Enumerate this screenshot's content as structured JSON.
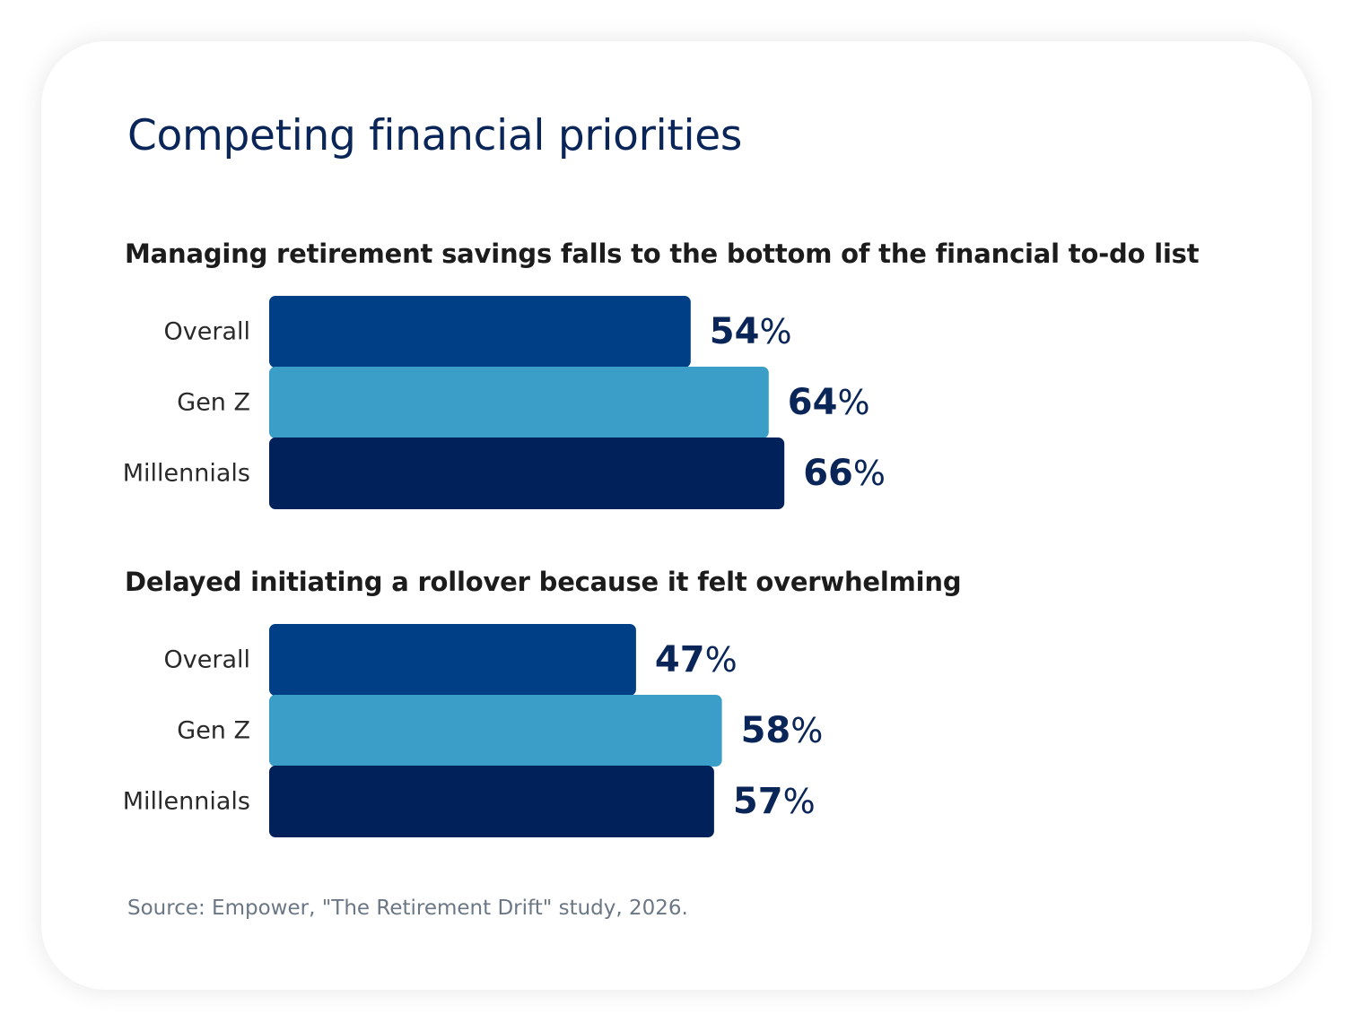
{
  "title": "Competing financial priorities",
  "source": "Source: Empower, \"The Retirement Drift\" study, 2026.",
  "colors": {
    "overall": "#003f85",
    "gen_z": "#3b9ec8",
    "millennials": "#00215a",
    "text_dark": "#0a2558"
  },
  "chart_data": [
    {
      "type": "bar",
      "orientation": "horizontal",
      "title": "Managing retirement savings falls to the bottom of the financial to-do list",
      "categories": [
        "Overall",
        "Gen Z",
        "Millennials"
      ],
      "values": [
        54,
        64,
        66
      ],
      "unit": "%",
      "xlim": [
        0,
        100
      ],
      "grid": false,
      "legend": "none"
    },
    {
      "type": "bar",
      "orientation": "horizontal",
      "title": "Delayed initiating a rollover because it felt overwhelming",
      "categories": [
        "Overall",
        "Gen Z",
        "Millennials"
      ],
      "values": [
        47,
        58,
        57
      ],
      "unit": "%",
      "xlim": [
        0,
        100
      ],
      "grid": false,
      "legend": "none"
    }
  ]
}
